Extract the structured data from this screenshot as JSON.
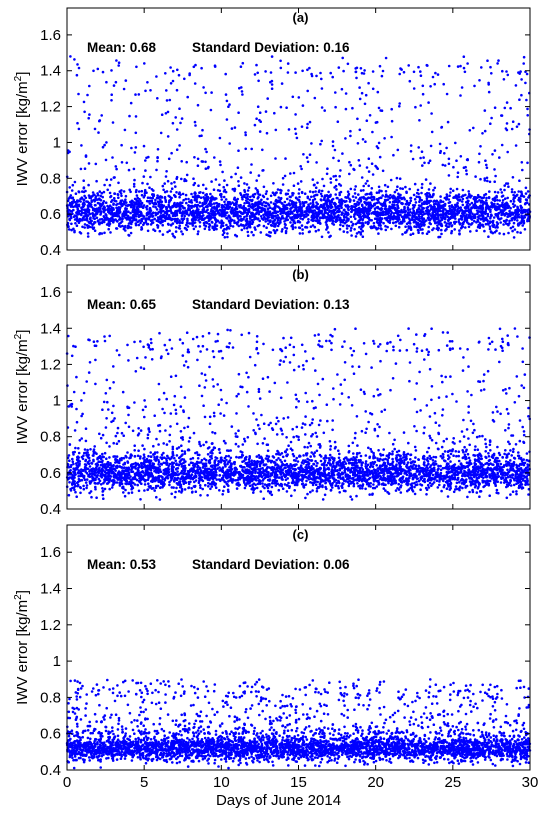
{
  "chart_data": [
    {
      "type": "scatter",
      "title": "(a)",
      "annotation": {
        "mean_label": "Mean: 0.68",
        "std_label": "Standard Deviation: 0.16"
      },
      "ylabel": "IWV error [kg/m²]",
      "ylabel_base": "IWV error [kg/m",
      "ylabel_sup": "2",
      "ylabel_end": "]",
      "xlim": [
        0,
        30
      ],
      "ylim": [
        0.4,
        1.75
      ],
      "yticks": [
        "0.4",
        "0.6",
        "0.8",
        "1",
        "1.2",
        "1.4",
        "1.6"
      ],
      "color": "#0000ff",
      "points_per_day": 140,
      "mean": 0.68,
      "std": 0.16,
      "bulk_center": 0.61,
      "bulk_spread": 0.055,
      "bulk_min": 0.47,
      "tail_max": 1.48,
      "top_row_y": 1.4
    },
    {
      "type": "scatter",
      "title": "(b)",
      "annotation": {
        "mean_label": "Mean: 0.65",
        "std_label": "Standard Deviation: 0.13"
      },
      "ylabel": "IWV error [kg/m²]",
      "ylabel_base": "IWV error [kg/m",
      "ylabel_sup": "2",
      "ylabel_end": "]",
      "xlim": [
        0,
        30
      ],
      "ylim": [
        0.4,
        1.75
      ],
      "yticks": [
        "0.4",
        "0.6",
        "0.8",
        "1",
        "1.2",
        "1.4",
        "1.6"
      ],
      "color": "#0000ff",
      "points_per_day": 140,
      "mean": 0.65,
      "std": 0.13,
      "bulk_center": 0.6,
      "bulk_spread": 0.05,
      "bulk_min": 0.45,
      "tail_max": 1.4,
      "top_row_y": 1.3
    },
    {
      "type": "scatter",
      "title": "(c)",
      "annotation": {
        "mean_label": "Mean: 0.53",
        "std_label": "Standard Deviation: 0.06"
      },
      "ylabel": "IWV error [kg/m²]",
      "ylabel_base": "IWV error [kg/m",
      "ylabel_sup": "2",
      "ylabel_end": "]",
      "xlabel": "Days of June 2014",
      "xlim": [
        0,
        30
      ],
      "xticks": [
        "0",
        "5",
        "10",
        "15",
        "20",
        "25",
        "30"
      ],
      "ylim": [
        0.4,
        1.75
      ],
      "yticks": [
        "0.4",
        "0.6",
        "0.8",
        "1",
        "1.2",
        "1.4",
        "1.6"
      ],
      "color": "#0000ff",
      "points_per_day": 140,
      "mean": 0.53,
      "std": 0.06,
      "bulk_center": 0.52,
      "bulk_spread": 0.035,
      "bulk_min": 0.41,
      "tail_max": 0.9,
      "top_row_y": 0.82
    }
  ]
}
